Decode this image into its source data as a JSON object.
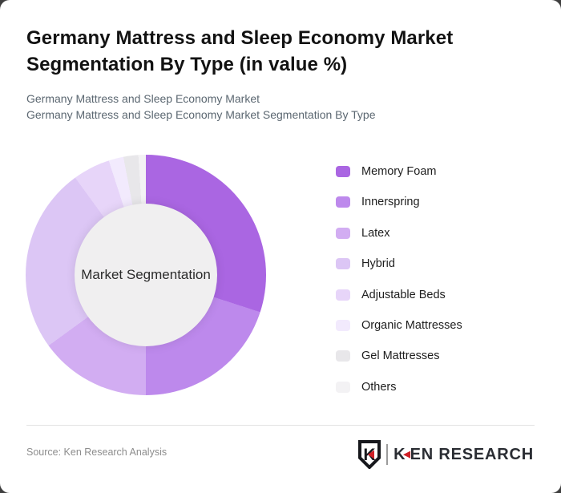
{
  "card": {
    "title": "Germany Mattress and Sleep Economy Market Segmentation By Type (in value %)",
    "subtitle_line1": "Germany Mattress and Sleep Economy Market",
    "subtitle_line2": "Germany Mattress and Sleep Economy Market Segmentation By Type"
  },
  "chart_data": {
    "type": "pie",
    "variant": "donut",
    "title": "Germany Mattress and Sleep Economy Market Segmentation By Type (in value %)",
    "center_label": "Market Segmentation",
    "start_angle_deg": 0,
    "direction": "clockwise",
    "legend_position": "right",
    "units": "% of value",
    "hole_color": "#f0eff0",
    "series": [
      {
        "name": "Memory Foam",
        "value": 30,
        "color": "#aa66e2"
      },
      {
        "name": "Innerspring",
        "value": 20,
        "color": "#bd89ec"
      },
      {
        "name": "Latex",
        "value": 15,
        "color": "#d2adf2"
      },
      {
        "name": "Hybrid",
        "value": 25,
        "color": "#dcc6f5"
      },
      {
        "name": "Adjustable Beds",
        "value": 5,
        "color": "#e7d5f9"
      },
      {
        "name": "Organic Mattresses",
        "value": 2,
        "color": "#f2eafd"
      },
      {
        "name": "Gel Mattresses",
        "value": 2,
        "color": "#e8e7ea"
      },
      {
        "name": "Others",
        "value": 1,
        "color": "#f3f2f4"
      }
    ]
  },
  "footer": {
    "source": "Source: Ken Research Analysis",
    "logo": {
      "emblem_letter": "K",
      "word_first": "K",
      "word_arrow": "◀",
      "word_rest": "EN RESEARCH",
      "accent_color": "#cf2027",
      "text_color": "#2a2d33"
    }
  }
}
